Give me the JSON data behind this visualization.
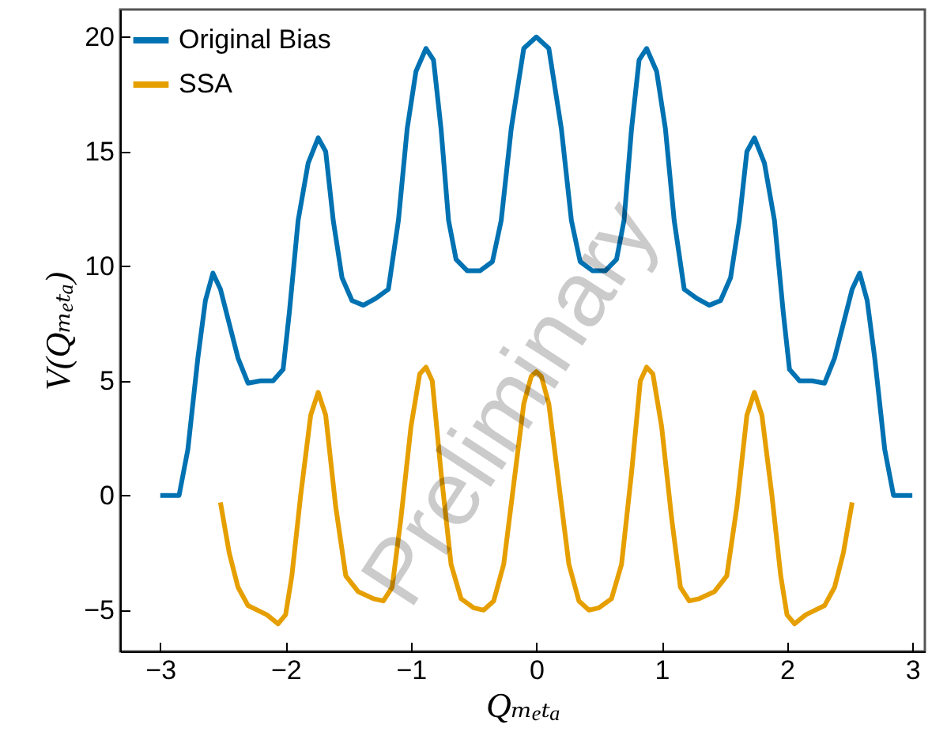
{
  "chart_data": {
    "type": "line",
    "xlabel": "Qₘₑₜₐ",
    "ylabel": "V(Qₘₑₜₐ)",
    "xlim": [
      -3.32,
      3.1
    ],
    "ylim": [
      -6.8,
      21.2
    ],
    "xticks": [
      -3,
      -2,
      -1,
      0,
      1,
      2,
      3
    ],
    "yticks": [
      -5,
      0,
      5,
      10,
      15,
      20
    ],
    "grid": false,
    "legend": "top left",
    "annotations": [
      "Preliminary"
    ],
    "series": [
      {
        "name": "Original Bias",
        "color": "#0072b2",
        "x": [
          -3.0,
          -2.85,
          -2.78,
          -2.7,
          -2.64,
          -2.58,
          -2.52,
          -2.45,
          -2.38,
          -2.3,
          -2.2,
          -2.1,
          -2.02,
          -1.97,
          -1.9,
          -1.82,
          -1.74,
          -1.68,
          -1.62,
          -1.55,
          -1.47,
          -1.38,
          -1.28,
          -1.18,
          -1.1,
          -1.03,
          -0.96,
          -0.88,
          -0.82,
          -0.76,
          -0.7,
          -0.64,
          -0.55,
          -0.45,
          -0.35,
          -0.28,
          -0.2,
          -0.1,
          0,
          0.1,
          0.2,
          0.28,
          0.35,
          0.45,
          0.55,
          0.64,
          0.7,
          0.76,
          0.82,
          0.88,
          0.96,
          1.03,
          1.1,
          1.18,
          1.28,
          1.38,
          1.47,
          1.55,
          1.62,
          1.68,
          1.74,
          1.82,
          1.9,
          1.97,
          2.02,
          2.1,
          2.2,
          2.3,
          2.38,
          2.45,
          2.52,
          2.58,
          2.64,
          2.7,
          2.78,
          2.85,
          3.0
        ],
        "values": [
          0,
          0,
          2,
          6,
          8.5,
          9.7,
          9,
          7.5,
          6,
          4.9,
          5,
          5,
          5.5,
          8,
          12,
          14.5,
          15.6,
          15,
          12,
          9.5,
          8.5,
          8.3,
          8.6,
          9,
          12,
          16,
          18.5,
          19.5,
          19,
          16,
          12,
          10.3,
          9.8,
          9.8,
          10.2,
          12,
          16,
          19.5,
          20,
          19.5,
          16,
          12,
          10.2,
          9.8,
          9.8,
          10.3,
          12,
          16,
          19,
          19.5,
          18.5,
          16,
          12,
          9,
          8.6,
          8.3,
          8.5,
          9.5,
          12,
          15,
          15.6,
          14.5,
          12,
          8,
          5.5,
          5,
          5,
          4.9,
          6,
          7.5,
          9,
          9.7,
          8.5,
          6,
          2,
          0,
          0
        ]
      },
      {
        "name": "SSA",
        "color": "#e69f00",
        "x": [
          -2.52,
          -2.45,
          -2.38,
          -2.3,
          -2.15,
          -2.06,
          -2.0,
          -1.95,
          -1.88,
          -1.8,
          -1.74,
          -1.68,
          -1.6,
          -1.52,
          -1.42,
          -1.3,
          -1.22,
          -1.15,
          -1.08,
          -1.0,
          -0.93,
          -0.88,
          -0.83,
          -0.76,
          -0.68,
          -0.6,
          -0.5,
          -0.42,
          -0.34,
          -0.26,
          -0.18,
          -0.1,
          -0.04,
          0,
          0.04,
          0.1,
          0.18,
          0.26,
          0.34,
          0.42,
          0.5,
          0.6,
          0.68,
          0.76,
          0.83,
          0.88,
          0.93,
          1.0,
          1.08,
          1.15,
          1.22,
          1.3,
          1.42,
          1.52,
          1.6,
          1.68,
          1.74,
          1.8,
          1.88,
          1.95,
          2.0,
          2.06,
          2.15,
          2.3,
          2.38,
          2.45,
          2.52
        ],
        "values": [
          -0.3,
          -2.5,
          -4,
          -4.8,
          -5.2,
          -5.6,
          -5.2,
          -3.5,
          0,
          3.5,
          4.5,
          3.5,
          -0.5,
          -3.5,
          -4.2,
          -4.5,
          -4.6,
          -4,
          -1,
          3,
          5.3,
          5.6,
          5,
          1,
          -3,
          -4.5,
          -4.9,
          -5,
          -4.6,
          -3,
          0.5,
          4,
          5.2,
          5.4,
          5.2,
          4,
          0.5,
          -3,
          -4.6,
          -5,
          -4.9,
          -4.5,
          -3,
          1,
          5,
          5.6,
          5.3,
          3,
          -1,
          -4,
          -4.6,
          -4.5,
          -4.2,
          -3.5,
          -0.5,
          3.5,
          4.5,
          3.5,
          0,
          -3.5,
          -5.2,
          -5.6,
          -5.2,
          -4.8,
          -4,
          -2.5,
          -0.3
        ]
      }
    ]
  }
}
